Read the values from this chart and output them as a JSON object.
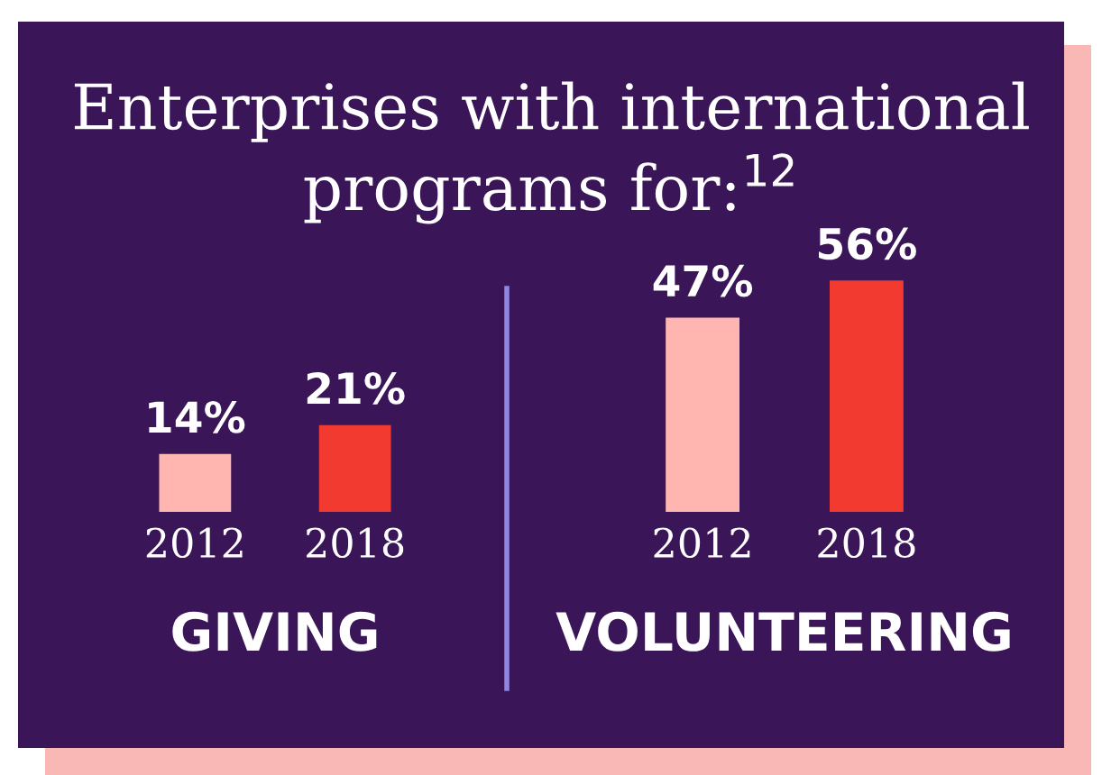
{
  "chart_data": [
    {
      "type": "bar",
      "title": "Enterprises with international programs for:$^{12}$",
      "xlabel": "GIVING",
      "categories": [
        "2012",
        "2018"
      ],
      "values": [
        14,
        21
      ],
      "colors": [
        "#ffb6b1",
        "#f23a30"
      ],
      "data_labels": true,
      "value_labels": [
        "14%",
        "21%"
      ],
      "tick_labels": "x",
      "grid": false,
      "legend": false
    },
    {
      "type": "bar",
      "xlabel": "VOLUNTEERING",
      "categories": [
        "2012",
        "2018"
      ],
      "values": [
        47,
        56
      ],
      "colors": [
        "#ffb6b1",
        "#f23a30"
      ],
      "data_labels": true,
      "value_labels": [
        "47%",
        "56%"
      ],
      "tick_labels": "x",
      "grid": false,
      "legend": false
    }
  ]
}
